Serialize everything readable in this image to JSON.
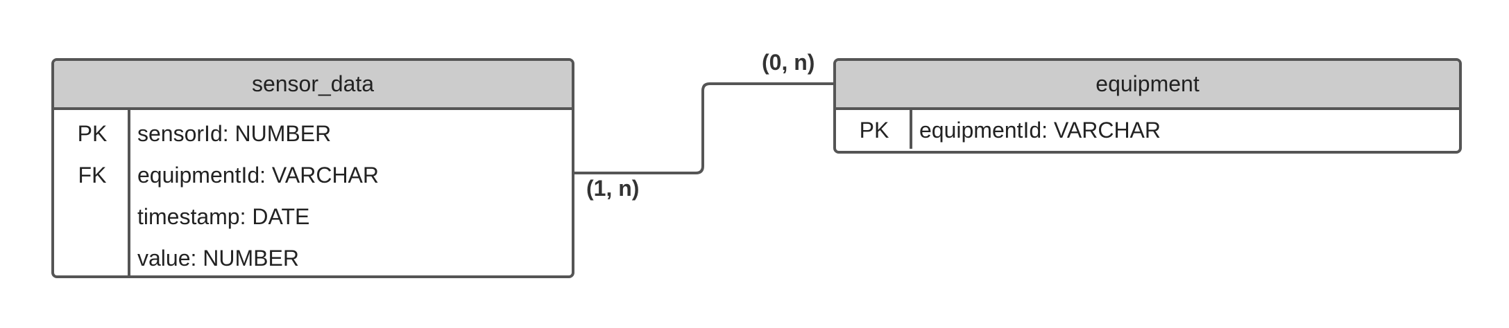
{
  "entities": {
    "sensor_data": {
      "title": "sensor_data",
      "rows": [
        {
          "key": "PK",
          "field": "sensorId: NUMBER"
        },
        {
          "key": "FK",
          "field": "equipmentId: VARCHAR"
        },
        {
          "key": "",
          "field": "timestamp: DATE"
        },
        {
          "key": "",
          "field": "value: NUMBER"
        }
      ]
    },
    "equipment": {
      "title": "equipment",
      "rows": [
        {
          "key": "PK",
          "field": "equipmentId: VARCHAR"
        }
      ]
    }
  },
  "relationship": {
    "sensor_side_cardinality": "(1, n)",
    "equipment_side_cardinality": "(0, n)"
  },
  "colors": {
    "header_fill": "#cccccc",
    "border": "#555555",
    "text": "#222222"
  }
}
